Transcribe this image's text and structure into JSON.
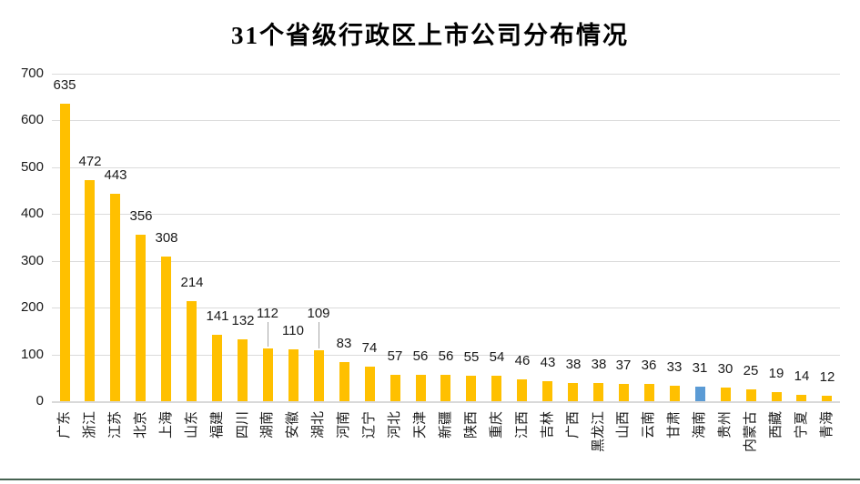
{
  "page": {
    "background_color": "#ffffff",
    "bottom_rule_color": "#476252"
  },
  "chart_data": {
    "type": "bar",
    "title": "31个省级行政区上市公司分布情况",
    "categories": [
      "广东",
      "浙江",
      "江苏",
      "北京",
      "上海",
      "山东",
      "福建",
      "四川",
      "湖南",
      "安徽",
      "湖北",
      "河南",
      "辽宁",
      "河北",
      "天津",
      "新疆",
      "陕西",
      "重庆",
      "江西",
      "吉林",
      "广西",
      "黑龙江",
      "山西",
      "云南",
      "甘肃",
      "海南",
      "贵州",
      "内蒙古",
      "西藏",
      "宁夏",
      "青海"
    ],
    "values": [
      635,
      472,
      443,
      356,
      308,
      214,
      141,
      132,
      112,
      110,
      109,
      83,
      74,
      57,
      56,
      56,
      55,
      54,
      46,
      43,
      38,
      38,
      37,
      36,
      33,
      31,
      30,
      25,
      19,
      14,
      12
    ],
    "xlabel": "",
    "ylabel": "",
    "ylim": [
      0,
      700
    ],
    "y_ticks": [
      0,
      100,
      200,
      300,
      400,
      500,
      600,
      700
    ],
    "grid": "horizontal-gridlines-on",
    "legend": "none",
    "data_labels": "outside-end",
    "bar_color": "#FFC000",
    "highlight_color": "#5B9BD5",
    "highlighted_category": "海南",
    "raised_label_categories": [
      "湖南",
      "湖北"
    ],
    "gridline_color": "#DBDBDB",
    "axis_line_color": "#D9D9D9",
    "leader_line_color": "#A6A6A6",
    "text_color": "#1a1a1a"
  }
}
